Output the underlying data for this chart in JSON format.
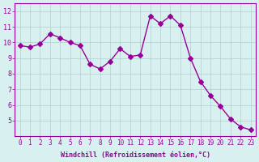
{
  "x": [
    0,
    1,
    2,
    3,
    4,
    5,
    6,
    7,
    8,
    9,
    10,
    11,
    12,
    13,
    14,
    15,
    16,
    17,
    18,
    19,
    20,
    21,
    22,
    23
  ],
  "y": [
    9.8,
    9.7,
    9.9,
    10.55,
    10.3,
    10.0,
    9.8,
    8.6,
    8.3,
    8.8,
    9.6,
    9.1,
    9.2,
    11.7,
    11.2,
    11.7,
    11.1,
    9.0,
    7.5,
    6.6,
    5.9,
    5.1,
    4.6,
    4.4
  ],
  "line_color": "#990099",
  "marker": "D",
  "marker_size": 3,
  "background_color": "#d8f0f0",
  "grid_color": "#b0d0d0",
  "xlabel": "Windchill (Refroidissement éolien,°C)",
  "xlabel_color": "#990099",
  "tick_color": "#990099",
  "ylim": [
    4,
    12.5
  ],
  "xlim": [
    -0.5,
    23.5
  ],
  "yticks": [
    5,
    6,
    7,
    8,
    9,
    10,
    11,
    12
  ],
  "xticks": [
    0,
    1,
    2,
    3,
    4,
    5,
    6,
    7,
    8,
    9,
    10,
    11,
    12,
    13,
    14,
    15,
    16,
    17,
    18,
    19,
    20,
    21,
    22,
    23
  ]
}
